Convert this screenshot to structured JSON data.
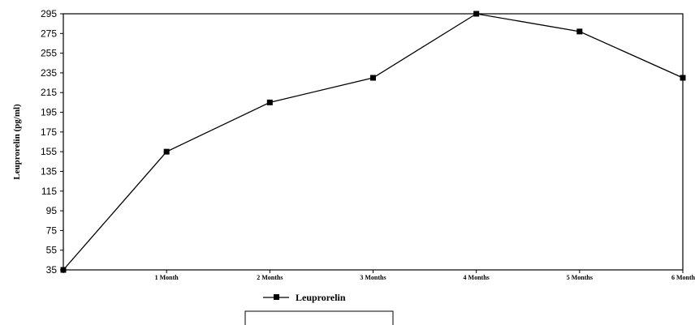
{
  "chart_data": {
    "type": "line",
    "categories": [
      "",
      "1 Month",
      "2 Months",
      "3 Months",
      "4 Months",
      "5 Months",
      "6 Month"
    ],
    "series": [
      {
        "name": "Leuprorelin",
        "values": [
          35,
          155,
          205,
          230,
          296,
          277,
          230
        ],
        "color": "#000000",
        "marker": "square"
      }
    ],
    "ylabel": "Leuprorelin  (pg/ml)",
    "xlabel": "",
    "title": "",
    "ylim": [
      35,
      295
    ],
    "yticks": [
      35,
      55,
      75,
      95,
      115,
      135,
      155,
      175,
      195,
      215,
      235,
      255,
      275,
      295
    ],
    "grid": false,
    "legend": {
      "position": "bottom",
      "entries": [
        "Leuprorelin"
      ]
    }
  }
}
